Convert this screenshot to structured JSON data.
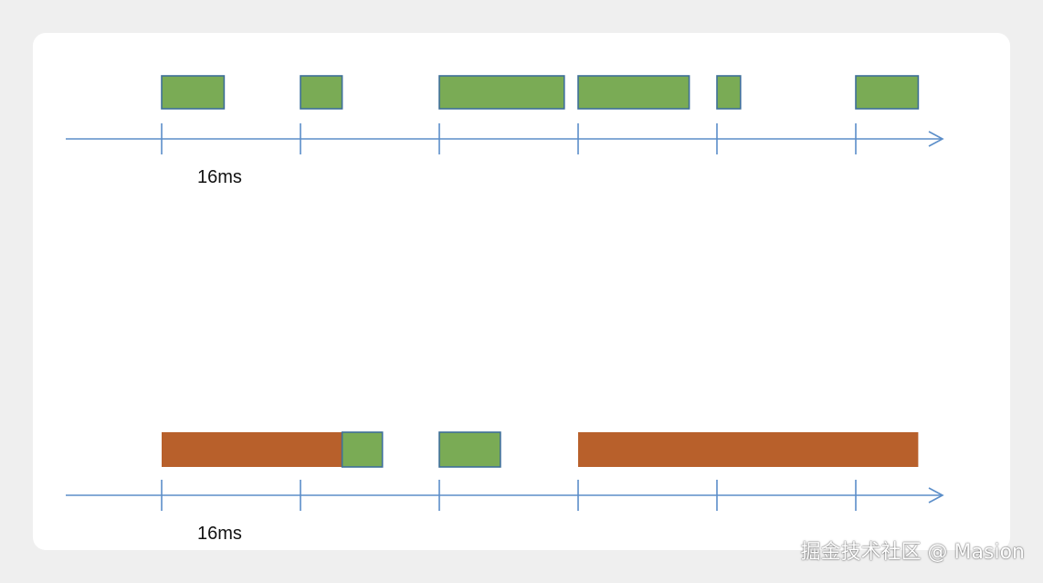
{
  "colors": {
    "normal_frame": "#7aab55",
    "long_frame": "#b8602b",
    "frame_border": "#3e6f99",
    "axis": "#5b8ec9"
  },
  "timelines": [
    {
      "name": "timeline-top",
      "interval_label": "16ms",
      "ticks": 6,
      "frames": [
        {
          "kind": "normal",
          "start": 0,
          "duration": 0.45
        },
        {
          "kind": "normal",
          "start": 1,
          "duration": 0.3
        },
        {
          "kind": "normal",
          "start": 2,
          "duration": 0.9
        },
        {
          "kind": "normal",
          "start": 3,
          "duration": 0.8
        },
        {
          "kind": "normal",
          "start": 4,
          "duration": 0.17
        },
        {
          "kind": "normal",
          "start": 5,
          "duration": 0.45
        }
      ]
    },
    {
      "name": "timeline-bottom",
      "interval_label": "16ms",
      "ticks": 6,
      "frames": [
        {
          "kind": "long",
          "start": 0,
          "duration": 1.3
        },
        {
          "kind": "normal",
          "start": 1.3,
          "duration": 0.29
        },
        {
          "kind": "normal",
          "start": 2,
          "duration": 0.44
        },
        {
          "kind": "long",
          "start": 3,
          "duration": 2.45
        }
      ]
    }
  ],
  "watermark": "掘金技术社区 @ Masion"
}
